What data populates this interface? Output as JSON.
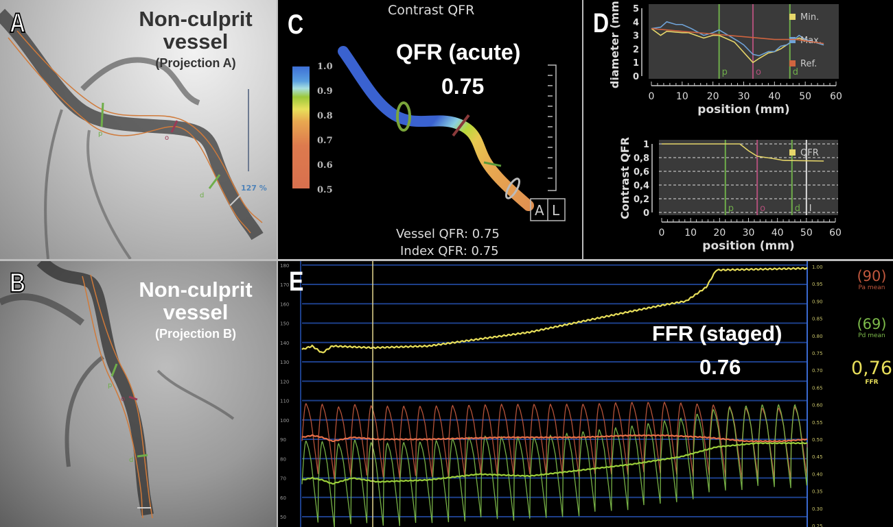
{
  "panels": {
    "a": {
      "letter": "A",
      "title_line1": "Non-culprit",
      "title_line2": "vessel",
      "subtitle": "(Projection A)",
      "markers": [
        "p",
        "o",
        "d"
      ],
      "scale_readout": "127 %"
    },
    "b": {
      "letter": "B",
      "title_line1": "Non-culprit",
      "title_line2": "vessel",
      "subtitle": "(Projection B)",
      "markers": [
        "p",
        "o",
        "d"
      ]
    },
    "c": {
      "letter": "C",
      "header": "Contrast QFR",
      "headline": "QFR (acute)",
      "headline_value": "0.75",
      "colorbar_ticks": [
        "1.0",
        "0.9",
        "0.8",
        "0.7",
        "0.6",
        "0.5"
      ],
      "vessel_qfr": "Vessel QFR: 0.75",
      "index_qfr": "Index QFR: 0.75",
      "orientation_cube": [
        "A",
        "L"
      ]
    },
    "d": {
      "letter": "D"
    },
    "e": {
      "letter": "E",
      "headline": "FFR (staged)",
      "headline_value": "0.76",
      "readouts": [
        {
          "value": "(90)",
          "label": "Pa mean",
          "color": "#c0573d"
        },
        {
          "value": "(69)",
          "label": "Pd mean",
          "color": "#7dbb4a"
        },
        {
          "value": "0,76",
          "label": "FFR",
          "color": "#e8df5a"
        }
      ]
    }
  },
  "chart_data": [
    {
      "id": "diameter",
      "type": "line",
      "xlabel": "position (mm)",
      "ylabel": "diameter (mm)",
      "xlim": [
        0,
        60
      ],
      "ylim": [
        0,
        5
      ],
      "xticks": [
        "0",
        "10",
        "20",
        "30",
        "40",
        "50",
        "60"
      ],
      "yticks": [
        "0",
        "1",
        "2",
        "3",
        "4",
        "5"
      ],
      "legend_position": "right",
      "markers": [
        {
          "label": "p",
          "x": 22,
          "color": "#6fae4a"
        },
        {
          "label": "o",
          "x": 33,
          "color": "#b0507a"
        },
        {
          "label": "d",
          "x": 45,
          "color": "#6fae4a"
        }
      ],
      "series": [
        {
          "name": "Min.",
          "color": "#e6d66a",
          "x": [
            0,
            3,
            5,
            10,
            12,
            17,
            20,
            22,
            25,
            27,
            29,
            31,
            33,
            35,
            38,
            40,
            42,
            44,
            46,
            48,
            50,
            53,
            56
          ],
          "y": [
            3.5,
            3.0,
            3.3,
            3.2,
            3.2,
            2.8,
            3.0,
            3.0,
            2.7,
            2.5,
            2.0,
            1.5,
            1.0,
            1.3,
            1.7,
            1.8,
            2.0,
            2.3,
            2.6,
            2.8,
            2.6,
            2.5,
            2.3
          ]
        },
        {
          "name": "Max.",
          "color": "#6fa3d8",
          "x": [
            0,
            3,
            5,
            8,
            10,
            13,
            17,
            20,
            22,
            25,
            28,
            30,
            33,
            35,
            38,
            40,
            42,
            44,
            46,
            48,
            50,
            53,
            56
          ],
          "y": [
            3.5,
            3.6,
            4.0,
            3.8,
            3.8,
            3.5,
            3.0,
            3.2,
            3.4,
            3.0,
            2.6,
            2.3,
            1.6,
            1.5,
            1.8,
            1.8,
            2.2,
            2.3,
            2.6,
            3.0,
            2.7,
            2.5,
            2.3
          ]
        },
        {
          "name": "Ref.",
          "color": "#d0643f",
          "x": [
            0,
            10,
            20,
            30,
            40,
            47,
            56
          ],
          "y": [
            3.5,
            3.3,
            3.1,
            2.9,
            2.7,
            2.7,
            2.4
          ]
        }
      ]
    },
    {
      "id": "contrast-qfr",
      "type": "line",
      "xlabel": "position (mm)",
      "ylabel": "Contrast QFR",
      "xlim": [
        0,
        60
      ],
      "ylim": [
        0,
        1
      ],
      "xticks": [
        "0",
        "10",
        "20",
        "30",
        "40",
        "50",
        "60"
      ],
      "yticks": [
        "0",
        "0,2",
        "0,4",
        "0,6",
        "0,8",
        "1"
      ],
      "grid": true,
      "legend_position": "right",
      "markers": [
        {
          "label": "p",
          "x": 22,
          "color": "#6fae4a"
        },
        {
          "label": "o",
          "x": 33,
          "color": "#b0507a"
        },
        {
          "label": "d",
          "x": 45,
          "color": "#6fae4a"
        },
        {
          "label": "l",
          "x": 50,
          "color": "#dddddd"
        }
      ],
      "series": [
        {
          "name": "QFR",
          "color": "#e6d66a",
          "x": [
            0,
            27,
            30,
            33,
            38,
            42,
            56
          ],
          "y": [
            1.0,
            1.0,
            0.9,
            0.82,
            0.79,
            0.76,
            0.75
          ]
        }
      ]
    },
    {
      "id": "ffr-tracing",
      "type": "line",
      "xlim": [
        0,
        100
      ],
      "ylim_left": [
        50,
        180
      ],
      "ylim_right": [
        0.25,
        1.0
      ],
      "yticks_left": [
        "180",
        "170",
        "160",
        "150",
        "140",
        "130",
        "120",
        "110",
        "100",
        "90",
        "80",
        "70",
        "60",
        "50"
      ],
      "yticks_right": [
        "1.00",
        "0.95",
        "0.90",
        "0.85",
        "0.80",
        "0.75",
        "0.70",
        "0.65",
        "0.60",
        "0.55",
        "0.50",
        "0.45",
        "0.40",
        "0.35",
        "0.30",
        "0.25"
      ],
      "cursor_x": 14,
      "beats": 31,
      "series": [
        {
          "name": "Pa mean",
          "axis": "left",
          "color": "#e8704a",
          "x": [
            0,
            2,
            4,
            6,
            10,
            15,
            25,
            40,
            55,
            65,
            72,
            80,
            88,
            95,
            100
          ],
          "y": [
            91,
            92,
            91,
            89,
            91,
            90,
            90,
            91,
            91,
            92,
            92,
            91,
            89,
            89,
            90
          ]
        },
        {
          "name": "Pd mean",
          "axis": "left",
          "color": "#9ccf3a",
          "x": [
            0,
            2,
            4,
            6,
            10,
            15,
            25,
            35,
            45,
            55,
            65,
            75,
            82,
            90,
            100
          ],
          "y": [
            69,
            70,
            69,
            67,
            70,
            68,
            69,
            72,
            71,
            74,
            77,
            81,
            86,
            88,
            88
          ]
        },
        {
          "name": "FFR",
          "axis": "right",
          "color": "#e8df5a",
          "x": [
            0,
            2,
            4,
            6,
            14,
            25,
            35,
            45,
            55,
            65,
            72,
            76,
            80,
            82,
            100
          ],
          "y": [
            0.76,
            0.77,
            0.75,
            0.77,
            0.765,
            0.77,
            0.79,
            0.81,
            0.84,
            0.87,
            0.89,
            0.9,
            0.94,
            0.99,
            0.995
          ]
        },
        {
          "name": "Pa phasic",
          "axis": "left",
          "color": "#c0573d",
          "base": "Pa mean",
          "amplitude": 19
        },
        {
          "name": "Pd phasic",
          "axis": "left",
          "color": "#7dbb4a",
          "base": "Pd mean",
          "amplitude": 22
        }
      ]
    }
  ]
}
